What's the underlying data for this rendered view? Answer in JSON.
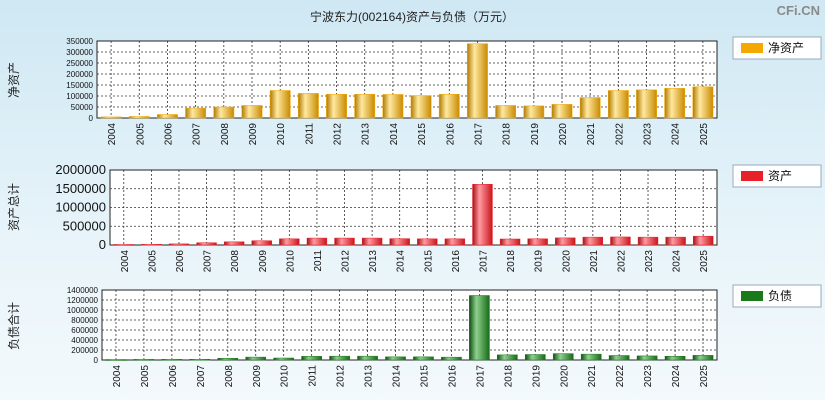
{
  "title": "宁波东力(002164)资产与负债（万元）",
  "watermark": "CFi.CN",
  "chart_data": [
    {
      "type": "bar",
      "ylabel": "净资产",
      "legend": "净资产",
      "color": "#f5a800",
      "ylim": [
        0,
        350000
      ],
      "yticks": [
        0,
        50000,
        100000,
        150000,
        200000,
        250000,
        300000,
        350000
      ],
      "categories": [
        "2004",
        "2005",
        "2006",
        "2007",
        "2008",
        "2009",
        "2010",
        "2011",
        "2012",
        "2013",
        "2014",
        "2015",
        "2016",
        "2017",
        "2018",
        "2019",
        "2020",
        "2021",
        "2022",
        "2023",
        "2024",
        "2025"
      ],
      "values": [
        5000,
        7000,
        16000,
        45000,
        50000,
        57000,
        125000,
        112000,
        108000,
        108000,
        107000,
        102000,
        108000,
        338000,
        57000,
        55000,
        62000,
        93000,
        125000,
        128000,
        135000,
        142000
      ]
    },
    {
      "type": "bar",
      "ylabel": "资产总计",
      "legend": "资产",
      "color": "#e8202a",
      "ylim": [
        0,
        2000000
      ],
      "yticks": [
        0,
        500000,
        1000000,
        1500000,
        2000000
      ],
      "categories": [
        "2004",
        "2005",
        "2006",
        "2007",
        "2008",
        "2009",
        "2010",
        "2011",
        "2012",
        "2013",
        "2014",
        "2015",
        "2016",
        "2017",
        "2018",
        "2019",
        "2020",
        "2021",
        "2022",
        "2023",
        "2024",
        "2025"
      ],
      "values": [
        15000,
        20000,
        30000,
        60000,
        85000,
        115000,
        165000,
        185000,
        185000,
        185000,
        170000,
        165000,
        165000,
        1620000,
        160000,
        165000,
        190000,
        210000,
        215000,
        210000,
        210000,
        235000
      ]
    },
    {
      "type": "bar",
      "ylabel": "负债合计",
      "legend": "负债",
      "color": "#1a7a1a",
      "ylim": [
        0,
        1400000
      ],
      "yticks": [
        0,
        200000,
        400000,
        600000,
        800000,
        1000000,
        1200000,
        1400000
      ],
      "categories": [
        "2004",
        "2005",
        "2006",
        "2007",
        "2008",
        "2009",
        "2010",
        "2011",
        "2012",
        "2013",
        "2014",
        "2015",
        "2016",
        "2017",
        "2018",
        "2019",
        "2020",
        "2021",
        "2022",
        "2023",
        "2024",
        "2025"
      ],
      "values": [
        10000,
        13000,
        14000,
        15000,
        35000,
        58000,
        40000,
        73000,
        77000,
        77000,
        63000,
        63000,
        57000,
        1290000,
        103000,
        110000,
        128000,
        117000,
        90000,
        82000,
        75000,
        93000
      ]
    }
  ]
}
